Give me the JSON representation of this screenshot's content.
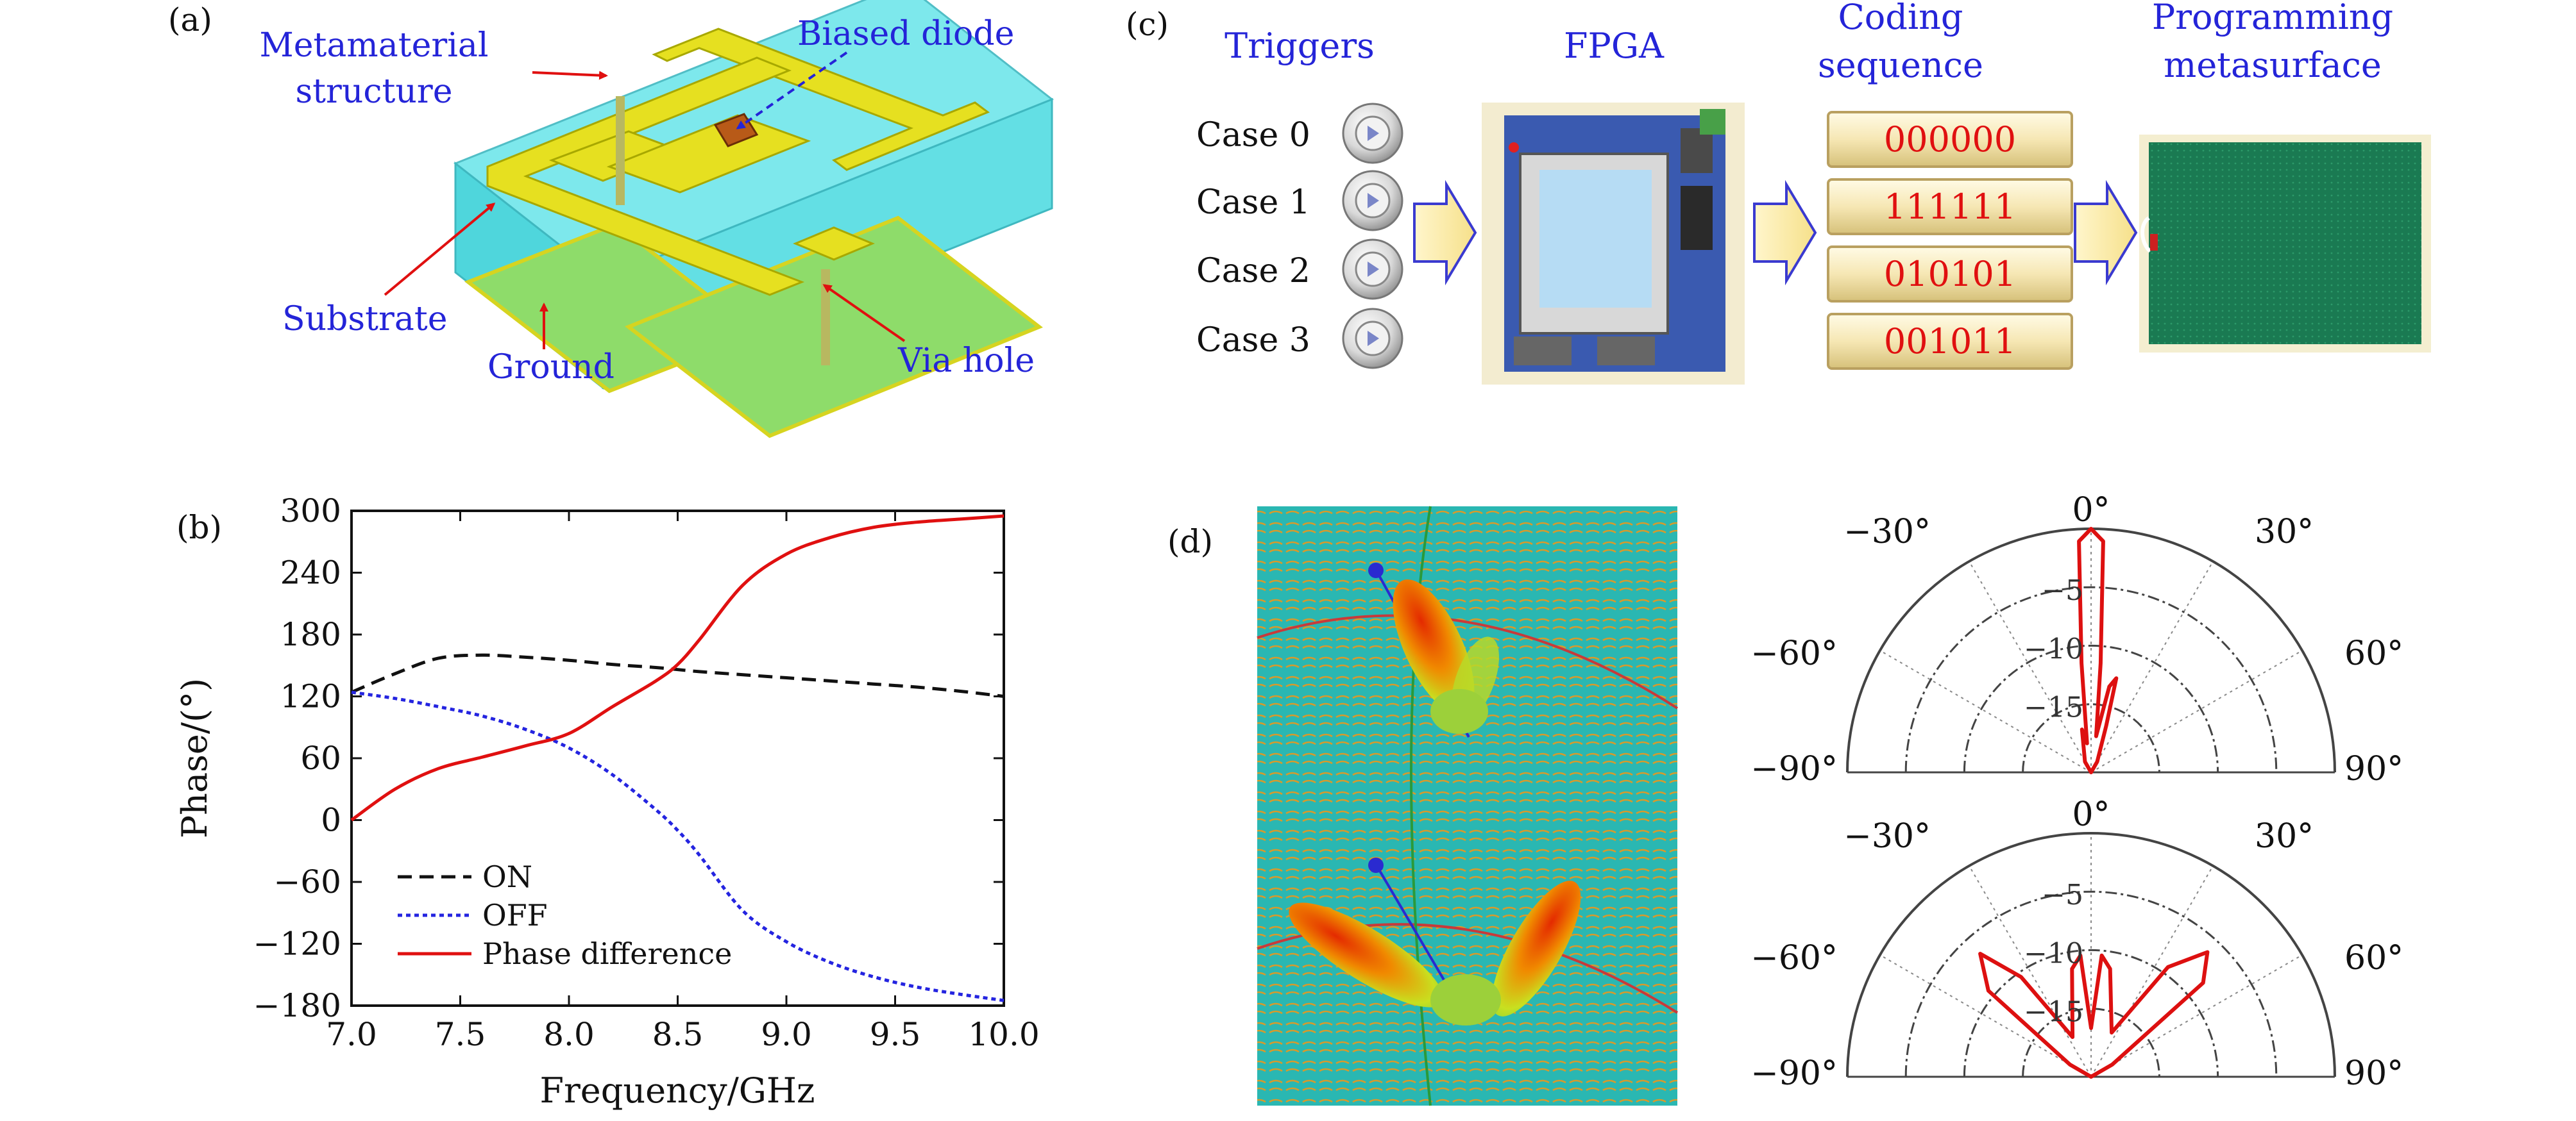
{
  "panel_a": {
    "label": "(a)",
    "metamaterial_line1": "Metamaterial",
    "metamaterial_line2": "structure",
    "biased_diode": "Biased diode",
    "substrate": "Substrate",
    "ground": "Ground",
    "via_hole": "Via hole"
  },
  "panel_c": {
    "label": "(c)",
    "triggers": "Triggers",
    "fpga": "FPGA",
    "coding_line1": "Coding",
    "coding_line2": "sequence",
    "programming_line1": "Programming",
    "programming_line2": "metasurface",
    "cases": [
      "Case 0",
      "Case 1",
      "Case 2",
      "Case 3"
    ],
    "codes": [
      "000000",
      "111111",
      "010101",
      "001011"
    ]
  },
  "panel_d": {
    "label": "(d)",
    "polar_top": {
      "angle_labels": [
        "0°",
        "30°",
        "−30°",
        "60°",
        "−60°",
        "90°",
        "−90°"
      ],
      "radial_labels": [
        "−5",
        "−10",
        "−15"
      ]
    },
    "polar_bottom": {
      "angle_labels": [
        "0°",
        "30°",
        "−30°",
        "60°",
        "−60°",
        "90°",
        "−90°"
      ],
      "radial_labels": [
        "−5",
        "−10",
        "−15"
      ]
    }
  },
  "colors": {
    "label_blue": "#2424d8",
    "code_red": "#e01010",
    "substrate": "#5fe0e6",
    "metal": "#e6e020",
    "ground": "#8edc6a",
    "arrow_fill": "#fdf0b0"
  },
  "chart_data": {
    "type": "line",
    "label": "(b)",
    "xlabel": "Frequency/GHz",
    "ylabel": "Phase/(°)",
    "xlim": [
      7.0,
      10.0
    ],
    "ylim": [
      -180,
      300
    ],
    "xticks": [
      7.0,
      7.5,
      8.0,
      8.5,
      9.0,
      9.5,
      10.0
    ],
    "xtick_labels": [
      "7.0",
      "7.5",
      "8.0",
      "8.5",
      "9.0",
      "9.5",
      "10.0"
    ],
    "yticks": [
      -180,
      -120,
      -60,
      0,
      60,
      120,
      180,
      240,
      300
    ],
    "ytick_labels": [
      "−180",
      "−120",
      "−60",
      "0",
      "60",
      "120",
      "180",
      "240",
      "300"
    ],
    "legend_position": "lower-left",
    "x": [
      7.0,
      7.2,
      7.4,
      7.6,
      7.8,
      8.0,
      8.2,
      8.4,
      8.5,
      8.6,
      8.8,
      9.0,
      9.2,
      9.4,
      9.6,
      9.8,
      10.0
    ],
    "series": [
      {
        "name": "ON",
        "style": "dashed",
        "color": "#111111",
        "values": [
          124,
          142,
          157,
          160,
          158,
          155,
          151,
          148,
          146,
          144,
          141,
          138,
          135,
          132,
          129,
          125,
          120
        ]
      },
      {
        "name": "OFF",
        "style": "dotted",
        "color": "#2424e0",
        "values": [
          124,
          118,
          110,
          101,
          88,
          70,
          44,
          10,
          -10,
          -34,
          -88,
          -118,
          -138,
          -152,
          -162,
          -169,
          -175
        ]
      },
      {
        "name": "Phase difference",
        "style": "solid",
        "color": "#e01010",
        "values": [
          0,
          30,
          50,
          61,
          72,
          84,
          110,
          135,
          151,
          175,
          228,
          258,
          274,
          284,
          289,
          292,
          295
        ]
      }
    ]
  }
}
